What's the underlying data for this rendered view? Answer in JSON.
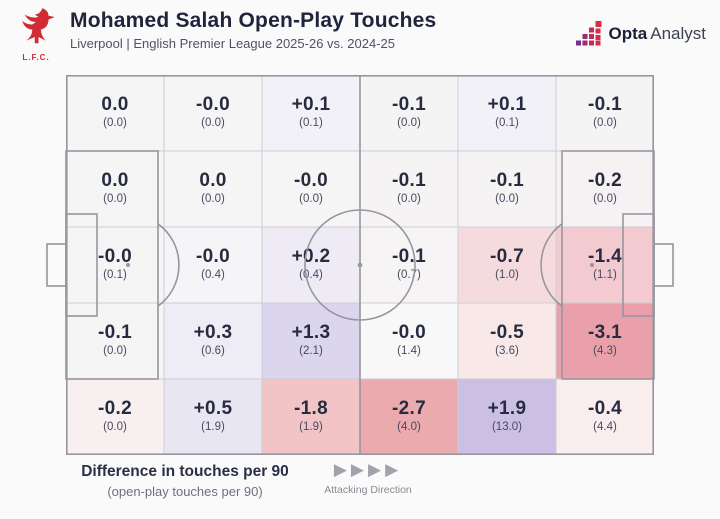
{
  "header": {
    "badge_label": "L.F.C.",
    "title": "Mohamed Salah Open-Play Touches",
    "subtitle": "Liverpool | English Premier League 2025-26 vs. 2024-25",
    "brand_bold": "Opta",
    "brand_regular": "Analyst"
  },
  "footer": {
    "legend_title": "Difference in touches per 90",
    "legend_subtitle": "(open-play touches per 90)",
    "attacking_label": "Attacking Direction",
    "arrow_count": 4,
    "arrow_glyph": "▶"
  },
  "colors": {
    "liverpool_red": "#d12b33",
    "title_navy": "#20253c",
    "subtitle_grey": "#4d5266",
    "pitch_line": "#97969f",
    "grid_line": "#cdccd3",
    "value_text": "#262b40",
    "subvalue_text": "#454b61",
    "arrow_grey": "#a3a2aa",
    "negative_strong": "#e9a0ab",
    "positive_strong": "#cbc0e4"
  },
  "chart_data": {
    "type": "heatmap",
    "title": "Mohamed Salah Open-Play Touches",
    "subtitle": "Liverpool | English Premier League 2025-26 vs. 2024-25",
    "value_label": "Difference in touches per 90",
    "sub_value_label": "open-play touches per 90",
    "layout": "6 columns x 5 rows of pitch zones, attacking direction left to right; each cell shows season-over-season difference with 2025-26 per-90 value in parentheses",
    "rows": 5,
    "cols": 6,
    "cells": [
      [
        {
          "diff": "0.0",
          "per90": "(0.0)",
          "bg": "#f6f5f6"
        },
        {
          "diff": "-0.0",
          "per90": "(0.0)",
          "bg": "#f6f5f6"
        },
        {
          "diff": "+0.1",
          "per90": "(0.1)",
          "bg": "#f3f1f8"
        },
        {
          "diff": "-0.1",
          "per90": "(0.0)",
          "bg": "#f5f4f5"
        },
        {
          "diff": "+0.1",
          "per90": "(0.1)",
          "bg": "#f3f1f8"
        },
        {
          "diff": "-0.1",
          "per90": "(0.0)",
          "bg": "#f5f4f5"
        }
      ],
      [
        {
          "diff": "0.0",
          "per90": "(0.0)",
          "bg": "#f6f5f6"
        },
        {
          "diff": "0.0",
          "per90": "(0.0)",
          "bg": "#f6f5f6"
        },
        {
          "diff": "-0.0",
          "per90": "(0.0)",
          "bg": "#f6f5f6"
        },
        {
          "diff": "-0.1",
          "per90": "(0.0)",
          "bg": "#f5f3f4"
        },
        {
          "diff": "-0.1",
          "per90": "(0.0)",
          "bg": "#f5f3f4"
        },
        {
          "diff": "-0.2",
          "per90": "(0.0)",
          "bg": "#f6f1f2"
        }
      ],
      [
        {
          "diff": "-0.0",
          "per90": "(0.1)",
          "bg": "#f6f5f6"
        },
        {
          "diff": "-0.0",
          "per90": "(0.4)",
          "bg": "#f5f4f6"
        },
        {
          "diff": "+0.2",
          "per90": "(0.4)",
          "bg": "#eeebf5"
        },
        {
          "diff": "-0.1",
          "per90": "(0.7)",
          "bg": "#f6f4f5"
        },
        {
          "diff": "-0.7",
          "per90": "(1.0)",
          "bg": "#f6dbde"
        },
        {
          "diff": "-1.4",
          "per90": "(1.1)",
          "bg": "#f2cad0"
        }
      ],
      [
        {
          "diff": "-0.1",
          "per90": "(0.0)",
          "bg": "#f6f5f6"
        },
        {
          "diff": "+0.3",
          "per90": "(0.6)",
          "bg": "#eeecf5"
        },
        {
          "diff": "+1.3",
          "per90": "(2.1)",
          "bg": "#dcd5ee"
        },
        {
          "diff": "-0.0",
          "per90": "(1.4)",
          "bg": "#f9f8f9"
        },
        {
          "diff": "-0.5",
          "per90": "(3.6)",
          "bg": "#f9e8e8"
        },
        {
          "diff": "-3.1",
          "per90": "(4.3)",
          "bg": "#e9a0ab"
        }
      ],
      [
        {
          "diff": "-0.2",
          "per90": "(0.0)",
          "bg": "#f8f0f0"
        },
        {
          "diff": "+0.5",
          "per90": "(1.9)",
          "bg": "#e9e6f3"
        },
        {
          "diff": "-1.8",
          "per90": "(1.9)",
          "bg": "#f2c4c6"
        },
        {
          "diff": "-2.7",
          "per90": "(4.0)",
          "bg": "#eaaaae"
        },
        {
          "diff": "+1.9",
          "per90": "(13.0)",
          "bg": "#cbc0e4"
        },
        {
          "diff": "-0.4",
          "per90": "(4.4)",
          "bg": "#f9edee"
        }
      ]
    ]
  }
}
